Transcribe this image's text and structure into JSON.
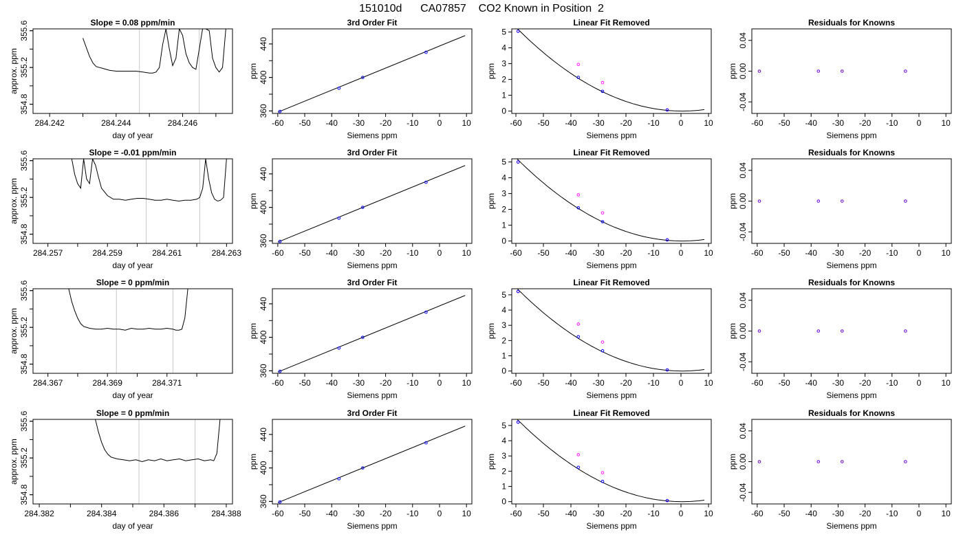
{
  "figure": {
    "title": "151010d      CA07857    CO2 Known in Position  2",
    "bg": "#ffffff",
    "colors": {
      "trace": "#000000",
      "gray_line": "#c8c8c8",
      "measured": "#0000ff",
      "raw": "#ff00ff",
      "fit": "#000000"
    }
  },
  "chart_data": [
    {
      "type": "line",
      "row": 0,
      "col": 0,
      "title": "Slope =  0.08  ppm/min",
      "xlabel": "day of year",
      "ylabel": "approx. ppm",
      "xlim": [
        284.2415,
        284.2475
      ],
      "ylim": [
        354.7,
        355.62
      ],
      "xticks": [
        "284.242",
        "284.244",
        "284.246"
      ],
      "yticks": [
        "354.8",
        "355.2",
        "355.6"
      ],
      "vlines": [
        284.2447,
        284.2465
      ],
      "series": [
        {
          "x": [
            284.243,
            284.2431,
            284.2432,
            284.2433,
            284.2434,
            284.2435,
            284.2436,
            284.2438,
            284.244,
            284.2442,
            284.2444,
            284.2446,
            284.2448,
            284.245,
            284.2451,
            284.2452,
            284.2453,
            284.2454,
            284.2455,
            284.2456,
            284.2457,
            284.2458,
            284.2459,
            284.246,
            284.2461,
            284.2462,
            284.2463,
            284.2464,
            284.2465,
            284.2466,
            284.2467,
            284.2468,
            284.2469,
            284.247,
            284.2471,
            284.2472,
            284.2473
          ],
          "y": [
            355.52,
            355.42,
            355.32,
            355.25,
            355.21,
            355.2,
            355.19,
            355.17,
            355.16,
            355.16,
            355.16,
            355.16,
            355.15,
            355.14,
            355.14,
            355.15,
            355.2,
            355.45,
            355.62,
            355.4,
            355.22,
            355.3,
            355.62,
            355.55,
            355.35,
            355.25,
            355.2,
            355.18,
            355.4,
            355.62,
            355.62,
            355.6,
            355.3,
            355.2,
            355.15,
            355.2,
            355.62
          ]
        }
      ]
    },
    {
      "type": "line",
      "row": 1,
      "col": 0,
      "title": "Slope =  -0.01  ppm/min",
      "xlabel": "day of year",
      "ylabel": "approx. ppm",
      "xlim": [
        284.2565,
        284.2632
      ],
      "ylim": [
        354.7,
        355.62
      ],
      "xticks": [
        "284.257",
        "284.259",
        "284.261",
        "284.263"
      ],
      "yticks": [
        "354.8",
        "355.2",
        "355.6"
      ],
      "vlines": [
        284.2603,
        284.2621
      ],
      "series": [
        {
          "x": [
            284.2578,
            284.2579,
            284.258,
            284.2581,
            284.2582,
            284.2583,
            284.2584,
            284.2585,
            284.2586,
            284.2587,
            284.2588,
            284.259,
            284.2592,
            284.2594,
            284.2596,
            284.2598,
            284.26,
            284.2602,
            284.2604,
            284.2606,
            284.2608,
            284.261,
            284.2612,
            284.2614,
            284.2616,
            284.2618,
            284.262,
            284.2621,
            284.2622,
            284.2623,
            284.2624,
            284.2625,
            284.2626,
            284.2627,
            284.2628,
            284.2629,
            284.263
          ],
          "y": [
            355.62,
            355.45,
            355.35,
            355.3,
            355.62,
            355.4,
            355.35,
            355.62,
            355.55,
            355.42,
            355.3,
            355.22,
            355.18,
            355.18,
            355.17,
            355.18,
            355.19,
            355.19,
            355.18,
            355.17,
            355.17,
            355.18,
            355.17,
            355.16,
            355.17,
            355.17,
            355.18,
            355.2,
            355.3,
            355.62,
            355.4,
            355.25,
            355.18,
            355.16,
            355.17,
            355.2,
            355.62
          ]
        }
      ]
    },
    {
      "type": "line",
      "row": 2,
      "col": 0,
      "title": "Slope =  0  ppm/min",
      "xlabel": "day of year",
      "ylabel": "approx. ppm",
      "xlim": [
        284.3665,
        284.3732
      ],
      "ylim": [
        354.7,
        355.62
      ],
      "xticks": [
        "284.367",
        "284.369",
        "284.371"
      ],
      "yticks": [
        "354.8",
        "355.2",
        "355.6"
      ],
      "vlines": [
        284.3693,
        284.3712
      ],
      "series": [
        {
          "x": [
            284.3677,
            284.3678,
            284.3679,
            284.368,
            284.3681,
            284.3682,
            284.3684,
            284.3686,
            284.3688,
            284.369,
            284.3692,
            284.3694,
            284.3696,
            284.3698,
            284.37,
            284.3702,
            284.3704,
            284.3706,
            284.3708,
            284.371,
            284.3712,
            284.3713,
            284.3714,
            284.3715,
            284.3716,
            284.3717
          ],
          "y": [
            355.62,
            355.48,
            355.38,
            355.3,
            355.24,
            355.21,
            355.19,
            355.18,
            355.18,
            355.19,
            355.18,
            355.18,
            355.17,
            355.19,
            355.18,
            355.18,
            355.19,
            355.18,
            355.18,
            355.19,
            355.18,
            355.17,
            355.17,
            355.18,
            355.3,
            355.62
          ]
        }
      ]
    },
    {
      "type": "line",
      "row": 3,
      "col": 0,
      "title": "Slope =  0  ppm/min",
      "xlabel": "day of year",
      "ylabel": "approx. ppm",
      "xlim": [
        284.3818,
        284.3882
      ],
      "ylim": [
        354.7,
        355.62
      ],
      "xticks": [
        "284.382",
        "284.384",
        "284.386",
        "284.388"
      ],
      "yticks": [
        "354.8",
        "355.2",
        "355.6"
      ],
      "vlines": [
        284.3852,
        284.387
      ],
      "series": [
        {
          "x": [
            284.3838,
            284.3839,
            284.384,
            284.3841,
            284.3842,
            284.3843,
            284.3845,
            284.3847,
            284.3849,
            284.3851,
            284.3853,
            284.3855,
            284.3857,
            284.3859,
            284.3861,
            284.3863,
            284.3865,
            284.3867,
            284.3869,
            284.3871,
            284.3873,
            284.3875,
            284.3876,
            284.3877,
            284.3878
          ],
          "y": [
            355.62,
            355.48,
            355.37,
            355.29,
            355.24,
            355.21,
            355.19,
            355.18,
            355.17,
            355.18,
            355.16,
            355.18,
            355.17,
            355.19,
            355.17,
            355.18,
            355.19,
            355.17,
            355.18,
            355.19,
            355.17,
            355.18,
            355.17,
            355.25,
            355.62
          ]
        }
      ]
    },
    {
      "type": "scatter",
      "row": 0,
      "col": 1,
      "title": "3rd Order Fit",
      "xlabel": "Siemens ppm",
      "ylabel": "ppm",
      "xlim": [
        -62,
        12
      ],
      "ylim": [
        357,
        458
      ],
      "xticks": [
        "-60",
        "-50",
        "-40",
        "-30",
        "-20",
        "-10",
        "0",
        "10"
      ],
      "yticks": [
        "360",
        "400",
        "440"
      ],
      "points": {
        "x": [
          -59.2,
          -37.3,
          -28.5,
          -5.0
        ],
        "y": [
          359.4,
          387.1,
          400.0,
          430.0
        ]
      },
      "fit_line": {
        "x": [
          -60,
          9.5
        ],
        "y": [
          358.5,
          450.0
        ]
      }
    },
    {
      "type": "scatter",
      "row": 1,
      "col": 1,
      "title": "3rd Order Fit",
      "xlabel": "Siemens ppm",
      "ylabel": "ppm",
      "xlim": [
        -62,
        12
      ],
      "ylim": [
        357,
        458
      ],
      "xticks": [
        "-60",
        "-50",
        "-40",
        "-30",
        "-20",
        "-10",
        "0",
        "10"
      ],
      "yticks": [
        "360",
        "400",
        "440"
      ],
      "points": {
        "x": [
          -59.2,
          -37.3,
          -28.5,
          -5.0
        ],
        "y": [
          359.4,
          387.1,
          400.0,
          430.0
        ]
      },
      "fit_line": {
        "x": [
          -60,
          9.5
        ],
        "y": [
          358.5,
          450.0
        ]
      }
    },
    {
      "type": "scatter",
      "row": 2,
      "col": 1,
      "title": "3rd Order Fit",
      "xlabel": "Siemens ppm",
      "ylabel": "ppm",
      "xlim": [
        -62,
        12
      ],
      "ylim": [
        357,
        458
      ],
      "xticks": [
        "-60",
        "-50",
        "-40",
        "-30",
        "-20",
        "-10",
        "0",
        "10"
      ],
      "yticks": [
        "360",
        "400",
        "440"
      ],
      "points": {
        "x": [
          -59.2,
          -37.3,
          -28.5,
          -5.0
        ],
        "y": [
          359.4,
          387.1,
          400.0,
          430.0
        ]
      },
      "fit_line": {
        "x": [
          -60,
          9.5
        ],
        "y": [
          358.5,
          450.0
        ]
      }
    },
    {
      "type": "scatter",
      "row": 3,
      "col": 1,
      "title": "3rd Order Fit",
      "xlabel": "Siemens ppm",
      "ylabel": "ppm",
      "xlim": [
        -62,
        12
      ],
      "ylim": [
        357,
        458
      ],
      "xticks": [
        "-60",
        "-50",
        "-40",
        "-30",
        "-20",
        "-10",
        "0",
        "10"
      ],
      "yticks": [
        "360",
        "400",
        "440"
      ],
      "points": {
        "x": [
          -59.2,
          -37.3,
          -28.5,
          -5.0
        ],
        "y": [
          359.4,
          387.1,
          400.0,
          430.0
        ]
      },
      "fit_line": {
        "x": [
          -60,
          9.5
        ],
        "y": [
          358.5,
          450.0
        ]
      }
    },
    {
      "type": "scatter",
      "row": 0,
      "col": 2,
      "title": "Linear Fit Removed",
      "xlabel": "Siemens ppm",
      "ylabel": "ppm",
      "xlim": [
        -61.5,
        11
      ],
      "ylim": [
        -0.15,
        5.2
      ],
      "xticks": [
        "-60",
        "-50",
        "-40",
        "-30",
        "-20",
        "-10",
        "0",
        "10"
      ],
      "yticks": [
        "0",
        "1",
        "2",
        "3",
        "4",
        "5"
      ],
      "points": {
        "x": [
          -59.2,
          -37.3,
          -28.5,
          -5.0
        ],
        "y": [
          5.05,
          2.13,
          1.25,
          0.07
        ]
      },
      "raw_points": {
        "x": [
          -59.2,
          -37.3,
          -28.5,
          -5.0
        ],
        "y": [
          5.05,
          2.95,
          1.8,
          0.07
        ]
      },
      "fit_curve": {
        "a": 0.00145,
        "vertex_x": 0.5,
        "xrange": [
          -59.5,
          9.0
        ]
      }
    },
    {
      "type": "scatter",
      "row": 1,
      "col": 2,
      "title": "Linear Fit Removed",
      "xlabel": "Siemens ppm",
      "ylabel": "ppm",
      "xlim": [
        -61.5,
        11
      ],
      "ylim": [
        -0.15,
        5.2
      ],
      "xticks": [
        "-60",
        "-50",
        "-40",
        "-30",
        "-20",
        "-10",
        "0",
        "10"
      ],
      "yticks": [
        "0",
        "1",
        "2",
        "3",
        "4",
        "5"
      ],
      "points": {
        "x": [
          -59.2,
          -37.3,
          -28.5,
          -5.0
        ],
        "y": [
          5.0,
          2.1,
          1.22,
          0.07
        ]
      },
      "raw_points": {
        "x": [
          -59.2,
          -37.3,
          -28.5,
          -5.0
        ],
        "y": [
          5.0,
          2.92,
          1.78,
          0.07
        ]
      },
      "fit_curve": {
        "a": 0.00144,
        "vertex_x": 0.5,
        "xrange": [
          -59.5,
          9.0
        ]
      }
    },
    {
      "type": "scatter",
      "row": 2,
      "col": 2,
      "title": "Linear Fit Removed",
      "xlabel": "Siemens ppm",
      "ylabel": "ppm",
      "xlim": [
        -61.5,
        11
      ],
      "ylim": [
        -0.15,
        5.4
      ],
      "xticks": [
        "-60",
        "-50",
        "-40",
        "-30",
        "-20",
        "-10",
        "0",
        "10"
      ],
      "yticks": [
        "0",
        "1",
        "2",
        "3",
        "4",
        "5"
      ],
      "points": {
        "x": [
          -59.2,
          -37.3,
          -28.5,
          -5.0
        ],
        "y": [
          5.22,
          2.25,
          1.33,
          0.07
        ]
      },
      "raw_points": {
        "x": [
          -59.2,
          -37.3,
          -28.5,
          -5.0
        ],
        "y": [
          5.22,
          3.08,
          1.9,
          0.07
        ]
      },
      "fit_curve": {
        "a": 0.0015,
        "vertex_x": 0.5,
        "xrange": [
          -59.5,
          9.0
        ]
      }
    },
    {
      "type": "scatter",
      "row": 3,
      "col": 2,
      "title": "Linear Fit Removed",
      "xlabel": "Siemens ppm",
      "ylabel": "ppm",
      "xlim": [
        -61.5,
        11
      ],
      "ylim": [
        -0.15,
        5.4
      ],
      "xticks": [
        "-60",
        "-50",
        "-40",
        "-30",
        "-20",
        "-10",
        "0",
        "10"
      ],
      "yticks": [
        "0",
        "1",
        "2",
        "3",
        "4",
        "5"
      ],
      "points": {
        "x": [
          -59.2,
          -37.3,
          -28.5,
          -5.0
        ],
        "y": [
          5.22,
          2.25,
          1.33,
          0.07
        ]
      },
      "raw_points": {
        "x": [
          -59.2,
          -37.3,
          -28.5,
          -5.0
        ],
        "y": [
          5.22,
          3.08,
          1.9,
          0.07
        ]
      },
      "fit_curve": {
        "a": 0.0015,
        "vertex_x": 0.5,
        "xrange": [
          -59.5,
          9.0
        ]
      }
    },
    {
      "type": "scatter",
      "row": 0,
      "col": 3,
      "title": "Residuals for Knowns",
      "xlabel": "Siemens ppm",
      "ylabel": "ppm",
      "xlim": [
        -62,
        12
      ],
      "ylim": [
        -0.055,
        0.055
      ],
      "xticks": [
        "-60",
        "-50",
        "-40",
        "-30",
        "-20",
        "-10",
        "0",
        "10"
      ],
      "yticks": [
        "-0.04",
        "0.00",
        "0.04"
      ],
      "points": {
        "x": [
          -59.2,
          -37.3,
          -28.5,
          -5.0
        ],
        "y": [
          0,
          0,
          0,
          0
        ]
      }
    },
    {
      "type": "scatter",
      "row": 1,
      "col": 3,
      "title": "Residuals for Knowns",
      "xlabel": "Siemens ppm",
      "ylabel": "ppm",
      "xlim": [
        -62,
        12
      ],
      "ylim": [
        -0.055,
        0.055
      ],
      "xticks": [
        "-60",
        "-50",
        "-40",
        "-30",
        "-20",
        "-10",
        "0",
        "10"
      ],
      "yticks": [
        "-0.04",
        "0.00",
        "0.04"
      ],
      "points": {
        "x": [
          -59.2,
          -37.3,
          -28.5,
          -5.0
        ],
        "y": [
          0,
          0,
          0,
          0
        ]
      }
    },
    {
      "type": "scatter",
      "row": 2,
      "col": 3,
      "title": "Residuals for Knowns",
      "xlabel": "Siemens ppm",
      "ylabel": "ppm",
      "xlim": [
        -62,
        12
      ],
      "ylim": [
        -0.055,
        0.055
      ],
      "xticks": [
        "-60",
        "-50",
        "-40",
        "-30",
        "-20",
        "-10",
        "0",
        "10"
      ],
      "yticks": [
        "-0.04",
        "0.00",
        "0.04"
      ],
      "points": {
        "x": [
          -59.2,
          -37.3,
          -28.5,
          -5.0
        ],
        "y": [
          0,
          0,
          0,
          0
        ]
      }
    },
    {
      "type": "scatter",
      "row": 3,
      "col": 3,
      "title": "Residuals for Knowns",
      "xlabel": "Siemens ppm",
      "ylabel": "ppm",
      "xlim": [
        -62,
        12
      ],
      "ylim": [
        -0.055,
        0.055
      ],
      "xticks": [
        "-60",
        "-50",
        "-40",
        "-30",
        "-20",
        "-10",
        "0",
        "10"
      ],
      "yticks": [
        "-0.04",
        "0.00",
        "0.04"
      ],
      "points": {
        "x": [
          -59.2,
          -37.3,
          -28.5,
          -5.0
        ],
        "y": [
          0,
          0,
          0,
          0
        ]
      }
    }
  ]
}
